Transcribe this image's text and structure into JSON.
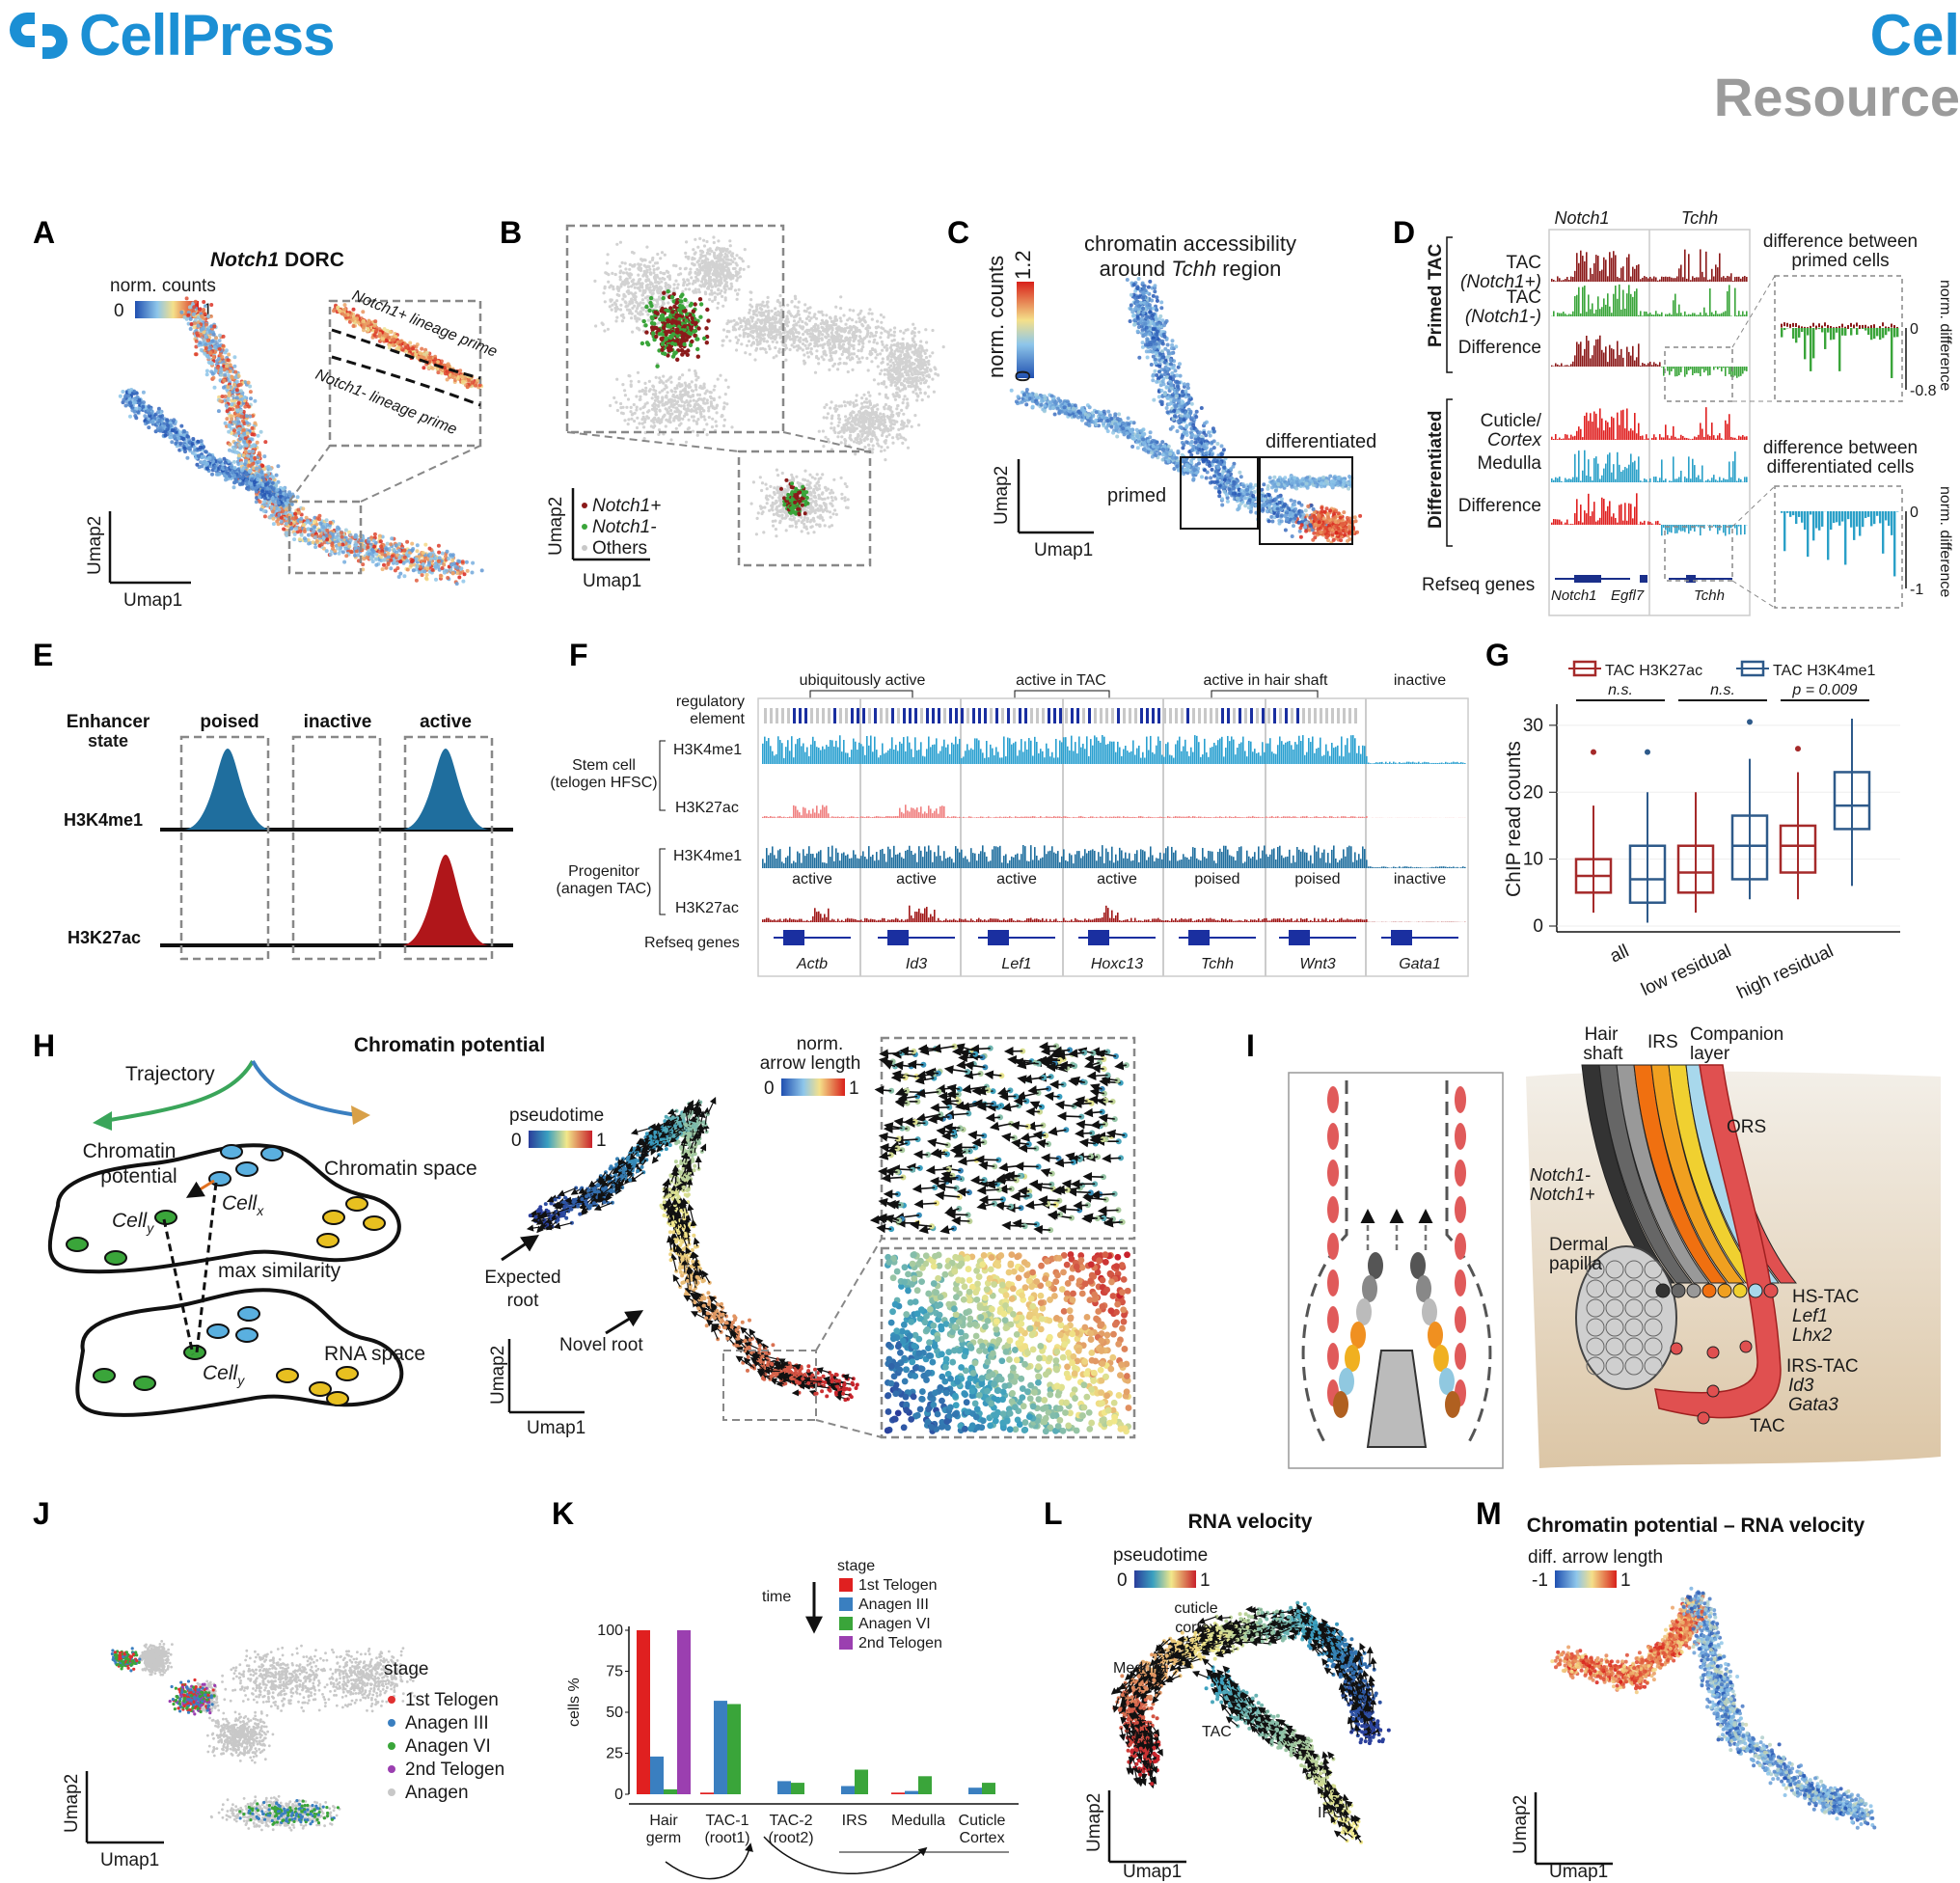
{
  "header": {
    "journal": "CellPress",
    "journal_right": "Cel",
    "article_type": "Resource"
  },
  "panels": {
    "A": {
      "label": "A",
      "title_gene": "Notch1",
      "title_rest": " DORC",
      "legend_title": "norm. counts",
      "legend_min": "0",
      "legend_max": "1",
      "inset_top": "Notch1+ lineage prime",
      "inset_bottom": "Notch1- lineage prime",
      "xaxis": "Umap1",
      "yaxis": "Umap2"
    },
    "B": {
      "label": "B",
      "legend": [
        "Notch1+",
        "Notch1-",
        "Others"
      ],
      "legend_colors": [
        "#8b1a1a",
        "#3aa53a",
        "#c8c8c8"
      ],
      "xaxis": "Umap1",
      "yaxis": "Umap2"
    },
    "C": {
      "label": "C",
      "title_line1": "chromatin accessibility",
      "title_line2_pre": "around ",
      "title_line2_gene": "Tchh",
      "title_line2_post": " region",
      "legend_title": "norm. counts",
      "legend_min": "0",
      "legend_max": "1.2",
      "primed": "primed",
      "differentiated": "differentiated",
      "xaxis": "Umap1",
      "yaxis": "Umap2"
    },
    "D": {
      "label": "D",
      "gene1": "Notch1",
      "gene2": "Tchh",
      "group1": "Primed TAC",
      "group2": "Differentiated",
      "tracks": [
        {
          "name_line1": "TAC",
          "name_line2": "(Notch1+)",
          "color": "#8b1a1a"
        },
        {
          "name_line1": "TAC",
          "name_line2": "(Notch1-)",
          "color": "#3aa53a"
        },
        {
          "name_line1": "Difference",
          "name_line2": "",
          "color": "#8b1a1a"
        },
        {
          "name_line1": "Cuticle/",
          "name_line2": "Cortex",
          "color": "#e02020"
        },
        {
          "name_line1": "Medulla",
          "name_line2": "",
          "color": "#2aa0c8"
        },
        {
          "name_line1": "Difference",
          "name_line2": "",
          "color": "#e02020"
        }
      ],
      "refseq": "Refseq genes",
      "genes": [
        "Notch1",
        "Egfl7",
        "Tchh"
      ],
      "diff1_line1": "difference between",
      "diff1_line2": "primed cells",
      "diff2_line1": "difference between",
      "diff2_line2": "differentiated cells",
      "diff_axis": "norm. difference",
      "diff1_ticks": [
        "0",
        "-0.8"
      ],
      "diff2_ticks": [
        "0",
        "-1"
      ]
    },
    "E": {
      "label": "E",
      "row_header_line1": "Enhancer",
      "row_header_line2": "state",
      "columns": [
        "poised",
        "inactive",
        "active"
      ],
      "rows": [
        "H3K4me1",
        "H3K27ac"
      ]
    },
    "F": {
      "label": "F",
      "groups": [
        "ubiquitously active",
        "active in TAC",
        "active in hair shaft",
        "inactive"
      ],
      "reg_line1": "regulatory",
      "reg_line2": "element",
      "stem_line1": "Stem cell",
      "stem_line2": "(telogen HFSC)",
      "prog_line1": "Progenitor",
      "prog_line2": "(anagen TAC)",
      "marks": [
        "H3K4me1",
        "H3K27ac",
        "H3K4me1",
        "H3K27ac"
      ],
      "states": [
        "active",
        "active",
        "active",
        "active",
        "poised",
        "poised",
        "inactive"
      ],
      "refseq": "Refseq genes",
      "genes": [
        "Actb",
        "Id3",
        "Lef1",
        "Hoxc13",
        "Tchh",
        "Wnt3",
        "Gata1"
      ]
    },
    "G": {
      "label": "G",
      "legend": [
        "TAC H3K27ac",
        "TAC H3K4me1"
      ],
      "colors": [
        "#a52a2a",
        "#2e5a8a"
      ],
      "sig": [
        "n.s.",
        "n.s.",
        "p = 0.009"
      ],
      "ylabel": "ChIP read counts",
      "yticks": [
        "0",
        "10",
        "20",
        "30"
      ],
      "categories": [
        "all",
        "low residual",
        "high residual"
      ]
    },
    "H": {
      "label": "H",
      "title": "Chromatin potential",
      "trajectory": "Trajectory",
      "cp_line1": "Chromatin",
      "cp_line2": "potential",
      "chromatin_space": "Chromatin space",
      "rna_space": "RNA space",
      "max_sim": "max similarity",
      "cell_y": "Cell",
      "cell_y_sub": "y",
      "cell_x": "Cell",
      "cell_x_sub": "x",
      "pseudotime": "pseudotime",
      "pt_min": "0",
      "pt_max": "1",
      "arrow_title_line1": "norm.",
      "arrow_title_line2": "arrow length",
      "al_min": "0",
      "al_max": "1",
      "expected_line1": "Expected",
      "expected_line2": "root",
      "novel": "Novel root",
      "xaxis": "Umap1",
      "yaxis": "Umap2"
    },
    "I": {
      "label": "I",
      "hair_line1": "Hair",
      "hair_line2": "shaft",
      "irs": "IRS",
      "companion_line1": "Companion",
      "companion_line2": "layer",
      "ors": "ORS",
      "notch_minus": "Notch1-",
      "notch_plus": "Notch1+",
      "dp_line1": "Dermal",
      "dp_line2": "papilla",
      "hstac": "HS-TAC",
      "hs_g1": "Lef1",
      "hs_g2": "Lhx2",
      "irstac": "IRS-TAC",
      "irs_g1": "Id3",
      "irs_g2": "Gata3",
      "tac": "TAC"
    },
    "J": {
      "label": "J",
      "legend_title": "stage",
      "legend": [
        "1st Telogen",
        "Anagen III",
        "Anagen VI",
        "2nd Telogen",
        "Anagen"
      ],
      "colors": [
        "#e03030",
        "#3a7fc0",
        "#3aa53a",
        "#9b3fb0",
        "#c8c8c8"
      ],
      "xaxis": "Umap1",
      "yaxis": "Umap2"
    },
    "K": {
      "label": "K",
      "time": "time",
      "note": "x labels: Hair germ, TAC-1 (root1), TAC-2 (root2), IRS, Medulla, Cuticle Cortex"
    },
    "L": {
      "label": "L",
      "title": "RNA velocity",
      "pseudotime": "pseudotime",
      "pt_min": "0",
      "pt_max": "1",
      "cuticle_line1": "cuticle",
      "cuticle_line2": "cortex",
      "medulla": "Medulla",
      "tac": "TAC",
      "irs": "IRS",
      "xaxis": "Umap1",
      "yaxis": "Umap2"
    },
    "M": {
      "label": "M",
      "title": "Chromatin potential – RNA velocity",
      "legend_title": "diff. arrow length",
      "lmin": "-1",
      "lmax": "1",
      "xaxis": "Umap1",
      "yaxis": "Umap2"
    }
  },
  "chart_data": [
    {
      "type": "box",
      "panel": "G",
      "categories": [
        "all",
        "low residual",
        "high residual"
      ],
      "series": [
        {
          "name": "TAC H3K27ac",
          "boxes": [
            {
              "min": 2,
              "q1": 5,
              "median": 7.5,
              "q3": 10,
              "max": 18,
              "outliers": [
                26
              ]
            },
            {
              "min": 2,
              "q1": 5,
              "median": 8,
              "q3": 12,
              "max": 20,
              "outliers": []
            },
            {
              "min": 4,
              "q1": 8,
              "median": 12,
              "q3": 15,
              "max": 23,
              "outliers": [
                26.5
              ]
            }
          ]
        },
        {
          "name": "TAC H3K4me1",
          "boxes": [
            {
              "min": 0.5,
              "q1": 3.5,
              "median": 7,
              "q3": 12,
              "max": 20,
              "outliers": [
                26
              ]
            },
            {
              "min": 4,
              "q1": 7,
              "median": 12,
              "q3": 16.5,
              "max": 25,
              "outliers": [
                30.5
              ]
            },
            {
              "min": 6,
              "q1": 14.5,
              "median": 18,
              "q3": 23,
              "max": 31,
              "outliers": []
            }
          ]
        }
      ],
      "ylabel": "ChIP read counts",
      "ylim": [
        0,
        32
      ]
    },
    {
      "type": "bar",
      "panel": "K",
      "categories": [
        "Hair germ",
        "TAC-1 (root1)",
        "TAC-2 (root2)",
        "IRS",
        "Medulla",
        "Cuticle Cortex"
      ],
      "series": [
        {
          "name": "1st Telogen",
          "color": "#e02020",
          "values": [
            100,
            1,
            0,
            0,
            1,
            0
          ]
        },
        {
          "name": "Anagen III",
          "color": "#3a7fc0",
          "values": [
            23,
            57,
            8,
            5,
            2,
            4
          ]
        },
        {
          "name": "Anagen VI",
          "color": "#3aa53a",
          "values": [
            3,
            55,
            7,
            15,
            11,
            7
          ]
        },
        {
          "name": "2nd Telogen",
          "color": "#9b3fb0",
          "values": [
            100,
            0,
            0,
            0,
            0,
            0
          ]
        }
      ],
      "legend_title": "stage",
      "ylabel": "cells %",
      "yticks": [
        0,
        25,
        50,
        75,
        100
      ],
      "ylim": [
        0,
        100
      ]
    }
  ]
}
